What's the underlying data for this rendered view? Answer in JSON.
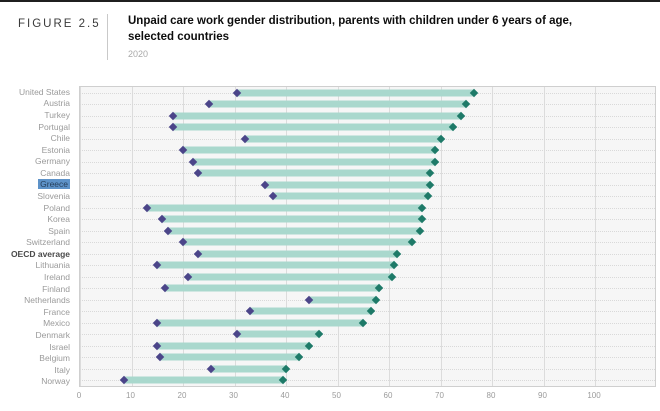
{
  "figure_label": "FIGURE 2.5",
  "header": {
    "title": "Unpaid care work gender distribution, parents with children under 6 years of age, selected countries",
    "subtitle": "2020"
  },
  "colors": {
    "bar": "#a9d8cd",
    "marker_start": "#4b4589",
    "marker_end": "#1e7a68",
    "highlight_bg": "#5d92c8",
    "plot_bg": "#f6f6f6",
    "gridline": "#dcdcdc"
  },
  "chart_data": {
    "type": "dumbbell",
    "orientation": "horizontal",
    "title": "Unpaid care work gender distribution, parents with children under 6 years of age, selected countries",
    "subtitle": "2020",
    "xlabel": "",
    "ylabel": "",
    "xlim": [
      0,
      100
    ],
    "x_ticks": [
      0,
      10,
      20,
      30,
      40,
      50,
      60,
      70,
      80,
      90,
      100
    ],
    "grid": true,
    "legend": false,
    "highlighted_category": "Greece",
    "emphasized_category": "OECD average",
    "marker_shape": "diamond",
    "rows": [
      {
        "country": "United States",
        "start": 30.5,
        "end": 76.5
      },
      {
        "country": "Austria",
        "start": 25,
        "end": 75
      },
      {
        "country": "Turkey",
        "start": 18,
        "end": 74
      },
      {
        "country": "Portugal",
        "start": 18,
        "end": 72.5
      },
      {
        "country": "Chile",
        "start": 32,
        "end": 70
      },
      {
        "country": "Estonia",
        "start": 20,
        "end": 69
      },
      {
        "country": "Germany",
        "start": 22,
        "end": 69
      },
      {
        "country": "Canada",
        "start": 23,
        "end": 68
      },
      {
        "country": "Greece",
        "start": 36,
        "end": 68
      },
      {
        "country": "Slovenia",
        "start": 37.5,
        "end": 67.5
      },
      {
        "country": "Poland",
        "start": 13,
        "end": 66.5
      },
      {
        "country": "Korea",
        "start": 16,
        "end": 66.5
      },
      {
        "country": "Spain",
        "start": 17,
        "end": 66
      },
      {
        "country": "Switzerland",
        "start": 20,
        "end": 64.5
      },
      {
        "country": "OECD average",
        "start": 23,
        "end": 61.5
      },
      {
        "country": "Lithuania",
        "start": 15,
        "end": 61
      },
      {
        "country": "Ireland",
        "start": 21,
        "end": 60.5
      },
      {
        "country": "Finland",
        "start": 16.5,
        "end": 58
      },
      {
        "country": "Netherlands",
        "start": 44.5,
        "end": 57.5
      },
      {
        "country": "France",
        "start": 33,
        "end": 56.5
      },
      {
        "country": "Mexico",
        "start": 15,
        "end": 55
      },
      {
        "country": "Denmark",
        "start": 30.5,
        "end": 46.5
      },
      {
        "country": "Israel",
        "start": 15,
        "end": 44.5
      },
      {
        "country": "Belgium",
        "start": 15.5,
        "end": 42.5
      },
      {
        "country": "Italy",
        "start": 25.5,
        "end": 40
      },
      {
        "country": "Norway",
        "start": 8.5,
        "end": 39.5
      }
    ]
  }
}
